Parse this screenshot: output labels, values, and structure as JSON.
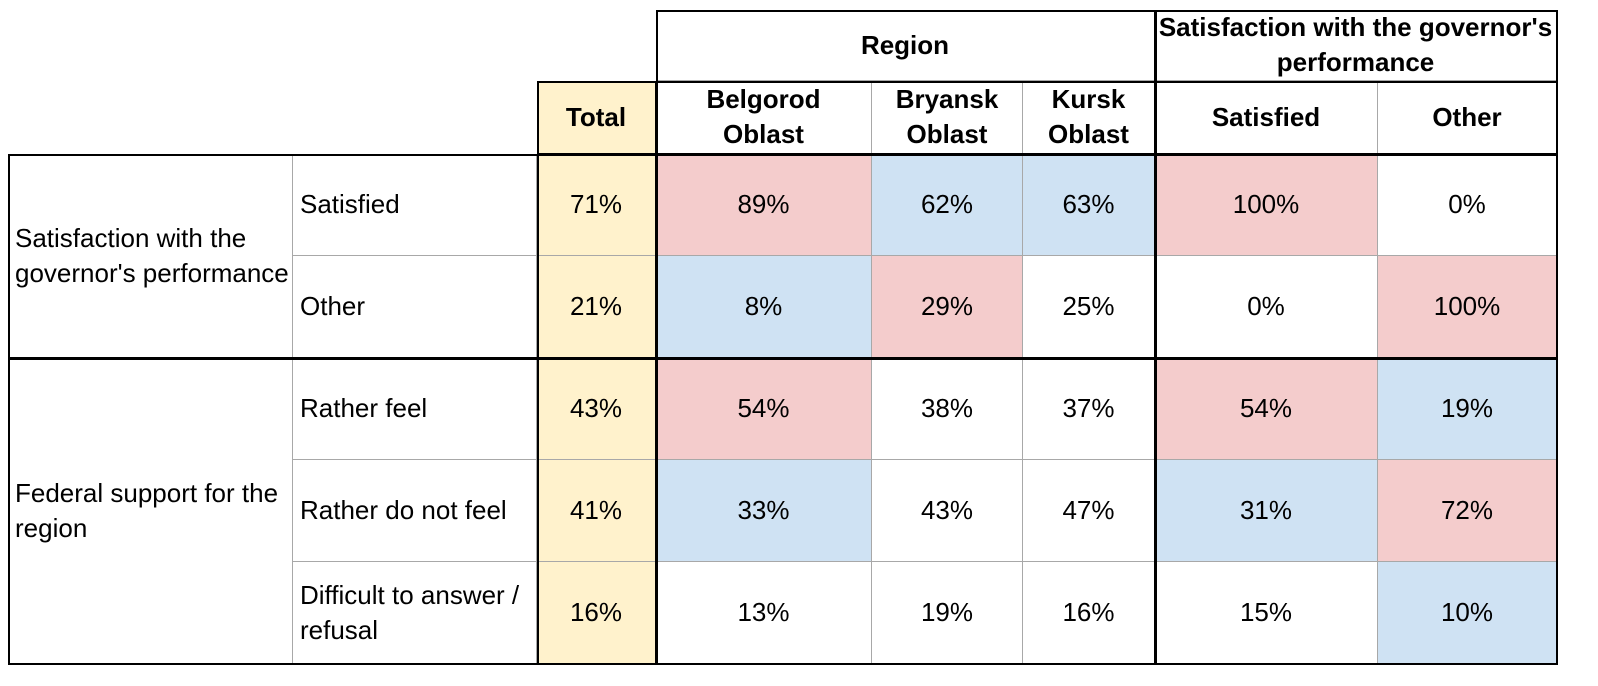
{
  "table": {
    "header": {
      "groups": [
        "Region",
        "Satisfaction with the governor's performance"
      ],
      "columns": [
        "Total",
        "Belgorod Oblast",
        "Bryansk Oblast",
        "Kursk Oblast",
        "Satisfied",
        "Other"
      ]
    },
    "total_fill": "#fff2cc",
    "groups": [
      {
        "label": "Satisfaction with the governor's performance",
        "rows": [
          {
            "label": "Satisfied",
            "cells": [
              "71%",
              "89%",
              "62%",
              "63%",
              "100%",
              "0%"
            ],
            "fills": [
              null,
              "#f4cccc",
              "#cfe2f3",
              "#cfe2f3",
              "#f4cccc",
              null
            ]
          },
          {
            "label": "Other",
            "cells": [
              "21%",
              "8%",
              "29%",
              "25%",
              "0%",
              "100%"
            ],
            "fills": [
              null,
              "#cfe2f3",
              "#f4cccc",
              null,
              null,
              "#f4cccc"
            ]
          }
        ]
      },
      {
        "label": "Federal support for the region",
        "rows": [
          {
            "label": "Rather feel",
            "cells": [
              "43%",
              "54%",
              "38%",
              "37%",
              "54%",
              "19%"
            ],
            "fills": [
              null,
              "#f4cccc",
              null,
              null,
              "#f4cccc",
              "#cfe2f3"
            ]
          },
          {
            "label": "Rather do not feel",
            "cells": [
              "41%",
              "33%",
              "43%",
              "47%",
              "31%",
              "72%"
            ],
            "fills": [
              null,
              "#cfe2f3",
              null,
              null,
              "#cfe2f3",
              "#f4cccc"
            ]
          },
          {
            "label": "Difficult to answer / refusal",
            "cells": [
              "16%",
              "13%",
              "19%",
              "16%",
              "15%",
              "10%"
            ],
            "fills": [
              null,
              null,
              null,
              null,
              null,
              "#cfe2f3"
            ]
          }
        ]
      }
    ]
  }
}
